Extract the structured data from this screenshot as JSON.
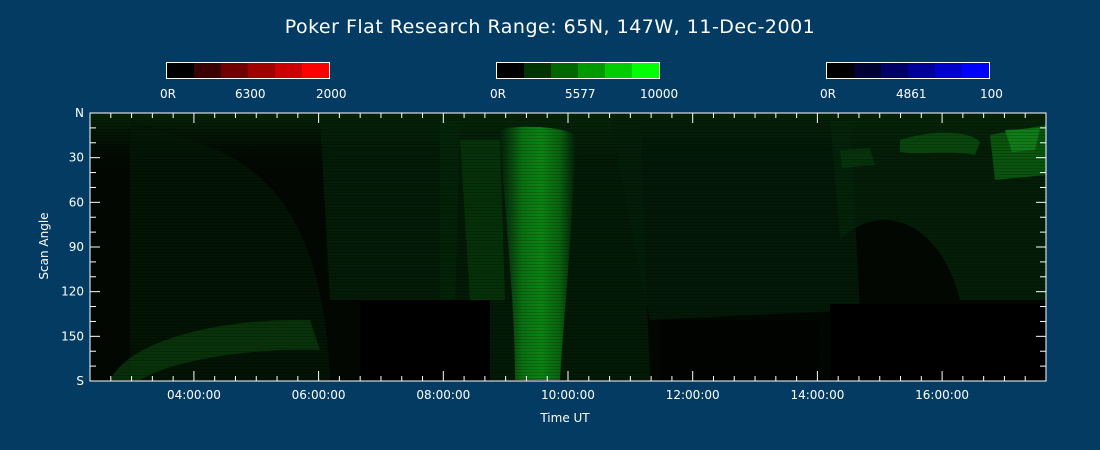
{
  "chart_data": {
    "type": "heatmap",
    "title": "Poker Flat Research Range: 65N, 147W, 11-Dec-2001",
    "xlabel": "Time UT",
    "ylabel": "Scan Angle",
    "xlim": [
      "02:20:00",
      "17:40:00"
    ],
    "x_ticks": [
      "04:00:00",
      "06:00:00",
      "08:00:00",
      "10:00:00",
      "12:00:00",
      "14:00:00",
      "16:00:00"
    ],
    "y_ticks": [
      "N",
      "30",
      "60",
      "90",
      "120",
      "150",
      "S"
    ],
    "colorbars": [
      {
        "name": "6300",
        "min_label": "0R",
        "mid_label": "6300",
        "max_label": "2000",
        "colors": [
          "#000000",
          "#3a0000",
          "#700000",
          "#a00000",
          "#cc0000",
          "#ff0000"
        ]
      },
      {
        "name": "5577",
        "min_label": "0R",
        "mid_label": "5577",
        "max_label": "10000",
        "colors": [
          "#000000",
          "#003300",
          "#006600",
          "#009900",
          "#00cc00",
          "#00ff00"
        ]
      },
      {
        "name": "4861",
        "min_label": "0R",
        "mid_label": "4861",
        "max_label": "100",
        "colors": [
          "#000000",
          "#000033",
          "#000066",
          "#000099",
          "#0000cc",
          "#0000ff"
        ]
      }
    ]
  },
  "colors": {
    "background": "#033b63",
    "green_peak": "#0c8a14",
    "green_dim": "#06320a"
  }
}
